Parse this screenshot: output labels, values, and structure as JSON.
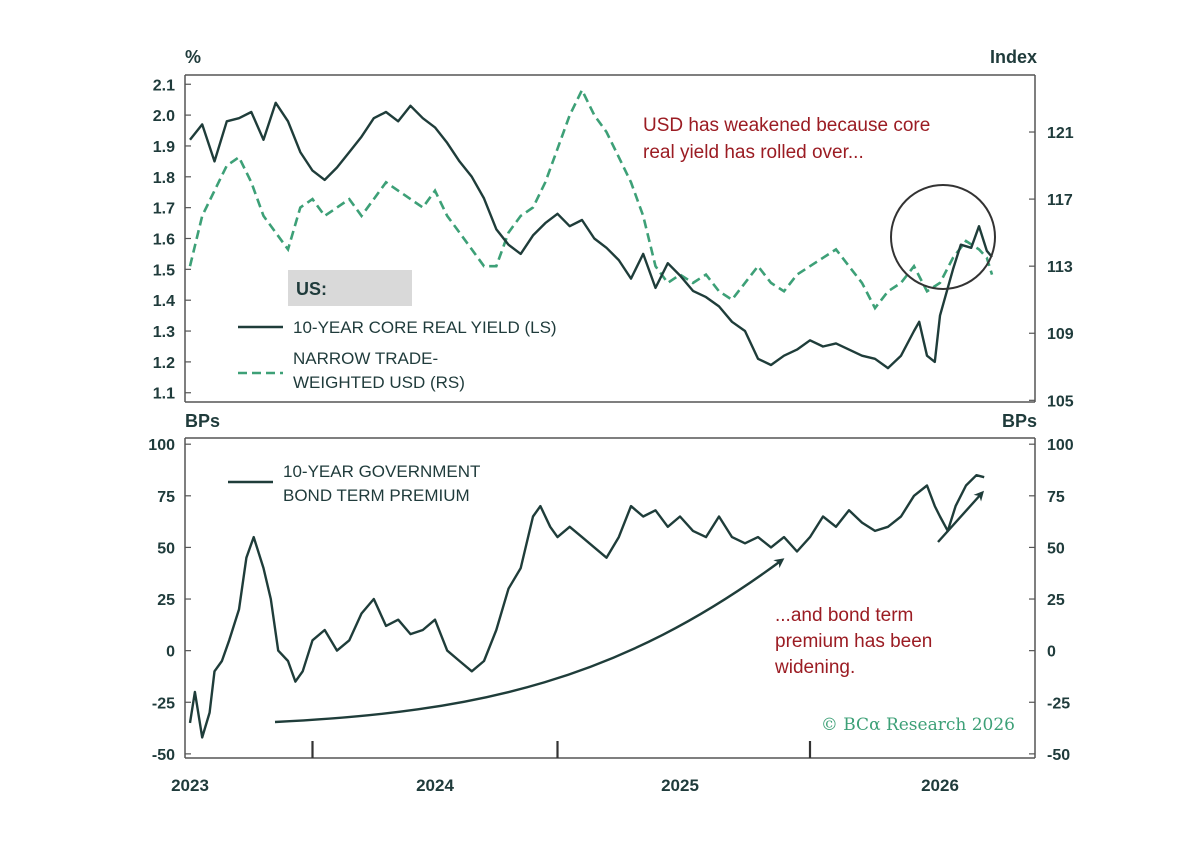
{
  "colors": {
    "dark_line": "#1f3d3a",
    "green_dash": "#3da077",
    "annotation": "#9b1c23",
    "axis": "#555555",
    "legend_box": "#d9d9d9"
  },
  "chart_data": [
    {
      "type": "line",
      "panel": "top",
      "left_unit": "%",
      "right_unit": "Index",
      "left_ticks": [
        "2.1",
        "2.0",
        "1.9",
        "1.8",
        "1.7",
        "1.6",
        "1.5",
        "1.4",
        "1.3",
        "1.2",
        "1.1"
      ],
      "right_ticks": [
        "121",
        "117",
        "113",
        "109",
        "105"
      ],
      "ylim_left": [
        1.07,
        2.13
      ],
      "ylim_right": [
        104.9,
        124.4
      ],
      "legend_header": "US:",
      "annotation": [
        "USD has weakened because core",
        "real yield has rolled over..."
      ],
      "series": [
        {
          "name": "10-YEAR CORE REAL YIELD (LS)",
          "axis": "left",
          "style": "solid",
          "points": [
            [
              2023.0,
              1.92
            ],
            [
              2023.05,
              1.97
            ],
            [
              2023.1,
              1.85
            ],
            [
              2023.15,
              1.98
            ],
            [
              2023.2,
              1.99
            ],
            [
              2023.25,
              2.01
            ],
            [
              2023.3,
              1.92
            ],
            [
              2023.35,
              2.04
            ],
            [
              2023.4,
              1.98
            ],
            [
              2023.45,
              1.88
            ],
            [
              2023.5,
              1.82
            ],
            [
              2023.55,
              1.79
            ],
            [
              2023.6,
              1.83
            ],
            [
              2023.65,
              1.88
            ],
            [
              2023.7,
              1.93
            ],
            [
              2023.75,
              1.99
            ],
            [
              2023.8,
              2.01
            ],
            [
              2023.85,
              1.98
            ],
            [
              2023.9,
              2.03
            ],
            [
              2023.95,
              1.99
            ],
            [
              2024.0,
              1.96
            ],
            [
              2024.05,
              1.91
            ],
            [
              2024.1,
              1.85
            ],
            [
              2024.15,
              1.8
            ],
            [
              2024.2,
              1.73
            ],
            [
              2024.25,
              1.63
            ],
            [
              2024.3,
              1.58
            ],
            [
              2024.35,
              1.55
            ],
            [
              2024.4,
              1.61
            ],
            [
              2024.45,
              1.65
            ],
            [
              2024.5,
              1.68
            ],
            [
              2024.55,
              1.64
            ],
            [
              2024.6,
              1.66
            ],
            [
              2024.65,
              1.6
            ],
            [
              2024.7,
              1.57
            ],
            [
              2024.75,
              1.53
            ],
            [
              2024.8,
              1.47
            ],
            [
              2024.85,
              1.55
            ],
            [
              2024.9,
              1.44
            ],
            [
              2024.95,
              1.52
            ],
            [
              2025.0,
              1.48
            ],
            [
              2025.05,
              1.43
            ],
            [
              2025.1,
              1.41
            ],
            [
              2025.15,
              1.38
            ],
            [
              2025.2,
              1.33
            ],
            [
              2025.25,
              1.3
            ],
            [
              2025.3,
              1.21
            ],
            [
              2025.35,
              1.19
            ],
            [
              2025.4,
              1.22
            ],
            [
              2025.45,
              1.24
            ],
            [
              2025.5,
              1.27
            ],
            [
              2025.55,
              1.25
            ],
            [
              2025.6,
              1.26
            ],
            [
              2025.65,
              1.24
            ],
            [
              2025.7,
              1.22
            ],
            [
              2025.75,
              1.21
            ],
            [
              2025.8,
              1.18
            ],
            [
              2025.85,
              1.22
            ],
            [
              2025.9,
              1.3
            ],
            [
              2025.92,
              1.33
            ],
            [
              2025.95,
              1.22
            ],
            [
              2025.98,
              1.2
            ],
            [
              2026.0,
              1.35
            ],
            [
              2026.05,
              1.5
            ],
            [
              2026.08,
              1.58
            ],
            [
              2026.12,
              1.57
            ],
            [
              2026.15,
              1.64
            ],
            [
              2026.18,
              1.56
            ],
            [
              2026.2,
              1.54
            ]
          ]
        },
        {
          "name": "NARROW TRADE-WEIGHTED USD (RS)",
          "axis": "right",
          "style": "dashed",
          "points": [
            [
              2023.0,
              113
            ],
            [
              2023.05,
              116
            ],
            [
              2023.1,
              117.5
            ],
            [
              2023.15,
              119
            ],
            [
              2023.2,
              119.5
            ],
            [
              2023.25,
              118
            ],
            [
              2023.3,
              116
            ],
            [
              2023.35,
              115
            ],
            [
              2023.4,
              114
            ],
            [
              2023.45,
              116.5
            ],
            [
              2023.5,
              117
            ],
            [
              2023.55,
              116
            ],
            [
              2023.6,
              116.5
            ],
            [
              2023.65,
              117
            ],
            [
              2023.7,
              116
            ],
            [
              2023.75,
              117
            ],
            [
              2023.8,
              118
            ],
            [
              2023.85,
              117.5
            ],
            [
              2023.9,
              117
            ],
            [
              2023.95,
              116.5
            ],
            [
              2024.0,
              117.5
            ],
            [
              2024.05,
              116
            ],
            [
              2024.1,
              115
            ],
            [
              2024.15,
              114
            ],
            [
              2024.2,
              113
            ],
            [
              2024.25,
              113
            ],
            [
              2024.3,
              115
            ],
            [
              2024.35,
              116
            ],
            [
              2024.4,
              116.5
            ],
            [
              2024.45,
              118
            ],
            [
              2024.5,
              120
            ],
            [
              2024.55,
              122
            ],
            [
              2024.6,
              123.5
            ],
            [
              2024.65,
              122
            ],
            [
              2024.7,
              121
            ],
            [
              2024.75,
              119.5
            ],
            [
              2024.8,
              118
            ],
            [
              2024.85,
              116
            ],
            [
              2024.9,
              113
            ],
            [
              2024.95,
              112
            ],
            [
              2025.0,
              112.5
            ],
            [
              2025.05,
              112
            ],
            [
              2025.1,
              112.5
            ],
            [
              2025.15,
              111.5
            ],
            [
              2025.2,
              111
            ],
            [
              2025.25,
              112
            ],
            [
              2025.3,
              113
            ],
            [
              2025.35,
              112
            ],
            [
              2025.4,
              111.5
            ],
            [
              2025.45,
              112.5
            ],
            [
              2025.5,
              113
            ],
            [
              2025.55,
              113.5
            ],
            [
              2025.6,
              114
            ],
            [
              2025.65,
              113
            ],
            [
              2025.7,
              112
            ],
            [
              2025.75,
              110.5
            ],
            [
              2025.8,
              111.5
            ],
            [
              2025.85,
              112
            ],
            [
              2025.9,
              113
            ],
            [
              2025.95,
              111.5
            ],
            [
              2026.0,
              112
            ],
            [
              2026.05,
              113.5
            ],
            [
              2026.1,
              114.5
            ],
            [
              2026.15,
              114
            ],
            [
              2026.18,
              113.5
            ],
            [
              2026.2,
              112.5
            ]
          ]
        }
      ]
    },
    {
      "type": "line",
      "panel": "bottom",
      "left_unit": "BPs",
      "right_unit": "BPs",
      "left_ticks": [
        "100",
        "75",
        "50",
        "25",
        "0",
        "-25",
        "-50"
      ],
      "right_ticks": [
        "100",
        "75",
        "50",
        "25",
        "0",
        "-25",
        "-50"
      ],
      "ylim": [
        -52,
        103
      ],
      "annotation": [
        "...and bond term",
        "premium has been",
        "widening."
      ],
      "series": [
        {
          "name": "10-YEAR GOVERNMENT BOND TERM PREMIUM",
          "style": "solid",
          "points": [
            [
              2023.0,
              -35
            ],
            [
              2023.02,
              -20
            ],
            [
              2023.05,
              -42
            ],
            [
              2023.08,
              -30
            ],
            [
              2023.1,
              -10
            ],
            [
              2023.13,
              -5
            ],
            [
              2023.16,
              5
            ],
            [
              2023.2,
              20
            ],
            [
              2023.23,
              45
            ],
            [
              2023.26,
              55
            ],
            [
              2023.3,
              40
            ],
            [
              2023.33,
              25
            ],
            [
              2023.36,
              0
            ],
            [
              2023.4,
              -5
            ],
            [
              2023.43,
              -15
            ],
            [
              2023.46,
              -10
            ],
            [
              2023.5,
              5
            ],
            [
              2023.55,
              10
            ],
            [
              2023.6,
              0
            ],
            [
              2023.65,
              5
            ],
            [
              2023.7,
              18
            ],
            [
              2023.75,
              25
            ],
            [
              2023.8,
              12
            ],
            [
              2023.85,
              15
            ],
            [
              2023.9,
              8
            ],
            [
              2023.95,
              10
            ],
            [
              2024.0,
              15
            ],
            [
              2024.05,
              0
            ],
            [
              2024.1,
              -5
            ],
            [
              2024.15,
              -10
            ],
            [
              2024.2,
              -5
            ],
            [
              2024.25,
              10
            ],
            [
              2024.3,
              30
            ],
            [
              2024.35,
              40
            ],
            [
              2024.4,
              65
            ],
            [
              2024.43,
              70
            ],
            [
              2024.47,
              60
            ],
            [
              2024.5,
              55
            ],
            [
              2024.55,
              60
            ],
            [
              2024.6,
              55
            ],
            [
              2024.65,
              50
            ],
            [
              2024.7,
              45
            ],
            [
              2024.75,
              55
            ],
            [
              2024.8,
              70
            ],
            [
              2024.85,
              65
            ],
            [
              2024.9,
              68
            ],
            [
              2024.95,
              60
            ],
            [
              2025.0,
              65
            ],
            [
              2025.05,
              58
            ],
            [
              2025.1,
              55
            ],
            [
              2025.15,
              65
            ],
            [
              2025.2,
              55
            ],
            [
              2025.25,
              52
            ],
            [
              2025.3,
              55
            ],
            [
              2025.35,
              50
            ],
            [
              2025.4,
              55
            ],
            [
              2025.45,
              48
            ],
            [
              2025.5,
              55
            ],
            [
              2025.55,
              65
            ],
            [
              2025.6,
              60
            ],
            [
              2025.65,
              68
            ],
            [
              2025.7,
              62
            ],
            [
              2025.75,
              58
            ],
            [
              2025.8,
              60
            ],
            [
              2025.85,
              65
            ],
            [
              2025.9,
              75
            ],
            [
              2025.95,
              80
            ],
            [
              2025.98,
              70
            ],
            [
              2026.0,
              65
            ],
            [
              2026.03,
              58
            ],
            [
              2026.06,
              70
            ],
            [
              2026.1,
              80
            ],
            [
              2026.14,
              85
            ],
            [
              2026.17,
              84
            ]
          ]
        }
      ]
    }
  ],
  "x_ticks": [
    "2023",
    "2024",
    "2025",
    "2026"
  ],
  "watermark": "© BCα Research 2026"
}
